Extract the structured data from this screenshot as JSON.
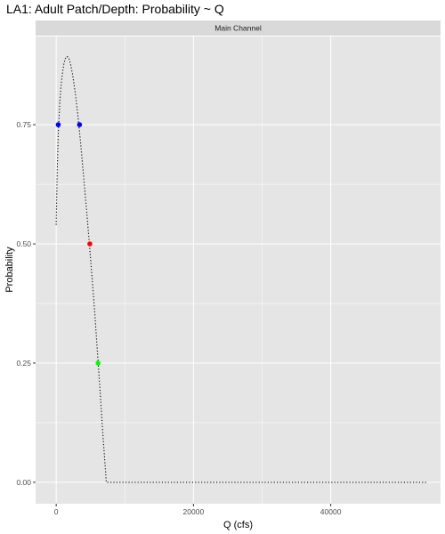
{
  "chart_data": {
    "type": "line",
    "title": "LA1: Adult Patch/Depth: Probability ~ Q",
    "facet": "Main Channel",
    "xlabel": "Q (cfs)",
    "ylabel": "Probability",
    "xlim": [
      -3000,
      56000
    ],
    "ylim": [
      -0.045,
      0.935
    ],
    "x_ticks": [
      0,
      20000,
      40000
    ],
    "x_tick_labels": [
      "0",
      "20000",
      "40000"
    ],
    "y_ticks": [
      0.0,
      0.25,
      0.5,
      0.75
    ],
    "y_tick_labels": [
      "0.00",
      "0.25",
      "0.50",
      "0.75"
    ],
    "grid": true,
    "legend": "none",
    "colors": {
      "panel_background": "#e5e5e5",
      "gridline": "#ffffff",
      "strip_background": "#d9d9d9",
      "curve": "#000000",
      "threshold_0_75": "#0000ff",
      "threshold_0_50": "#ff0000",
      "threshold_0_25": "#00ff00"
    },
    "series": [
      {
        "style": "dotted",
        "x": [
          0,
          100,
          200,
          300,
          500,
          700,
          900,
          1100,
          1300,
          1500,
          1700,
          1900,
          2100,
          2400,
          2800,
          3200,
          3600,
          4000,
          4400,
          4800,
          5200,
          5600,
          6000,
          6400,
          6800,
          7200,
          7300,
          10000,
          20000,
          30000,
          40000,
          54000
        ],
        "y": [
          0.54,
          0.62,
          0.68,
          0.73,
          0.79,
          0.83,
          0.857,
          0.876,
          0.888,
          0.893,
          0.892,
          0.887,
          0.877,
          0.855,
          0.815,
          0.765,
          0.705,
          0.64,
          0.575,
          0.505,
          0.435,
          0.36,
          0.275,
          0.19,
          0.1,
          0.02,
          0.0,
          0.0,
          0.0,
          0.0,
          0.0,
          0.0
        ]
      }
    ],
    "points": [
      {
        "x": 300,
        "y": 0.75,
        "color": "#0000ff"
      },
      {
        "x": 3400,
        "y": 0.75,
        "color": "#0000ff"
      },
      {
        "x": 4900,
        "y": 0.5,
        "color": "#ff0000"
      },
      {
        "x": 6100,
        "y": 0.25,
        "color": "#00ff00"
      }
    ]
  }
}
